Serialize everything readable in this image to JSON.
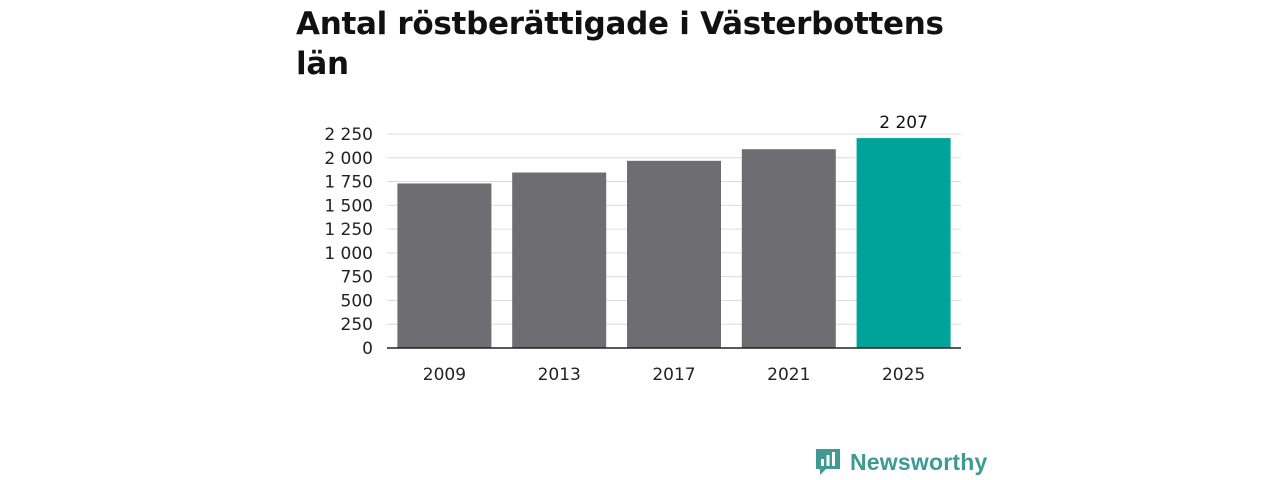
{
  "chart_data": {
    "type": "bar",
    "title": "Antal röstberättigade i Västerbottens län",
    "categories": [
      "2009",
      "2013",
      "2017",
      "2021",
      "2025"
    ],
    "values": [
      1730,
      1845,
      1968,
      2090,
      2207
    ],
    "highlight_index": 4,
    "data_labels": {
      "4": "2 207"
    },
    "ylim": [
      0,
      2250
    ],
    "yticks": [
      0,
      250,
      500,
      750,
      1000,
      1250,
      1500,
      1750,
      2000,
      2250
    ],
    "ytick_labels": [
      "0",
      "250",
      "500",
      "750",
      "1 000",
      "1 250",
      "1 500",
      "1 750",
      "2 000",
      "2 250"
    ],
    "grid": true,
    "colors": {
      "bar": "#6d6d72",
      "highlight": "#00a39a",
      "grid": "#dcdcdc",
      "axis": "#222222"
    }
  },
  "footer": {
    "brand_name": "Newsworthy",
    "brand_icon": "bar-chart-icon",
    "brand_color": "#3f9a93"
  }
}
